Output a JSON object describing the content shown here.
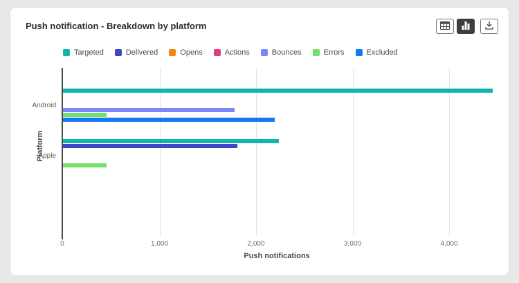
{
  "card": {
    "title": "Push notification - Breakdown by platform"
  },
  "toolbar": {
    "buttons": [
      {
        "name": "table-view",
        "icon": "table-icon",
        "active": false
      },
      {
        "name": "chart-view",
        "icon": "bar-chart-icon",
        "active": true
      },
      {
        "name": "download",
        "icon": "download-icon",
        "active": false
      }
    ]
  },
  "legend": [
    {
      "label": "Targeted",
      "color": "#0fb5ae"
    },
    {
      "label": "Delivered",
      "color": "#4046ca"
    },
    {
      "label": "Opens",
      "color": "#f68511"
    },
    {
      "label": "Actions",
      "color": "#de3d82"
    },
    {
      "label": "Bounces",
      "color": "#7e84fa"
    },
    {
      "label": "Errors",
      "color": "#72e06a"
    },
    {
      "label": "Excluded",
      "color": "#147af3"
    }
  ],
  "chart_data": {
    "type": "bar",
    "orientation": "horizontal",
    "title": "Push notification - Breakdown by platform",
    "categories": [
      "Android",
      "Apple"
    ],
    "series": [
      {
        "name": "Targeted",
        "color": "#0fb5ae",
        "values": [
          4450,
          2240
        ]
      },
      {
        "name": "Delivered",
        "color": "#4046ca",
        "values": [
          0,
          1810
        ]
      },
      {
        "name": "Opens",
        "color": "#f68511",
        "values": [
          0,
          0
        ]
      },
      {
        "name": "Actions",
        "color": "#de3d82",
        "values": [
          0,
          0
        ]
      },
      {
        "name": "Bounces",
        "color": "#7e84fa",
        "values": [
          1780,
          0
        ]
      },
      {
        "name": "Errors",
        "color": "#72e06a",
        "values": [
          450,
          450
        ]
      },
      {
        "name": "Excluded",
        "color": "#147af3",
        "values": [
          2190,
          0
        ]
      }
    ],
    "xlabel": "Push notifications",
    "ylabel": "Platform",
    "xlim": [
      0,
      4460
    ],
    "xticks": [
      0,
      1000,
      2000,
      3000,
      4000
    ],
    "grid": true,
    "legend_position": "top"
  }
}
